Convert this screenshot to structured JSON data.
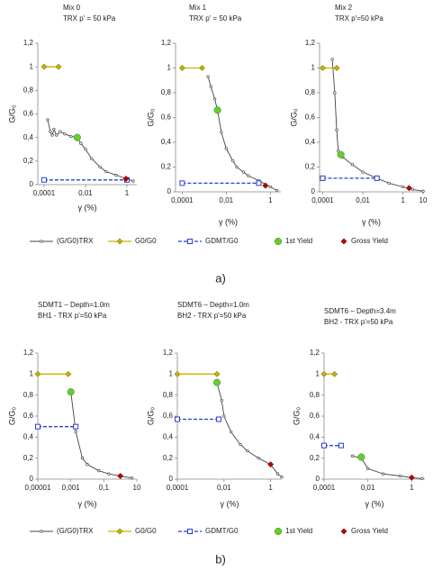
{
  "panel_labels": [
    "a)",
    "b)"
  ],
  "chart_data": [
    {
      "type": "line",
      "title": "Mix 0",
      "subtitle": "TRX p' = 50 kPa",
      "xlabel": "γ (%)",
      "ylabel": "G/G₀",
      "xscale": "log",
      "xlim": [
        5e-05,
        3
      ],
      "xticks": [
        {
          "value": 0.0001,
          "label": "0,0001"
        },
        {
          "value": 0.01,
          "label": "0,01"
        },
        1
      ],
      "ylim": [
        0,
        1.2
      ],
      "yticks": [
        0,
        {
          "value": 0.2,
          "label": "0,2"
        },
        {
          "value": 0.4,
          "label": "0,4"
        },
        {
          "value": 0.6,
          "label": "0,6"
        },
        {
          "value": 0.8,
          "label": "0,8"
        },
        1,
        {
          "value": 1.2,
          "label": "1,2"
        }
      ],
      "series": [
        {
          "name": "(G/G0)TRX",
          "color": "#444444",
          "marker": "dot",
          "x": [
            0.00015,
            0.0002,
            0.00025,
            0.0003,
            0.0004,
            0.0006,
            0.001,
            0.002,
            0.004,
            0.006,
            0.01,
            0.02,
            0.05,
            0.1,
            0.3,
            1,
            2
          ],
          "values": [
            0.55,
            0.45,
            0.42,
            0.47,
            0.42,
            0.45,
            0.43,
            0.41,
            0.4,
            0.35,
            0.3,
            0.22,
            0.15,
            0.11,
            0.08,
            0.05,
            0.03
          ]
        },
        {
          "name": "G0/G0",
          "color": "#c8b400",
          "marker": "diamond",
          "x": [
            0.0001,
            0.0005
          ],
          "values": [
            1,
            1
          ]
        },
        {
          "name": "GDMT/G0",
          "color": "#2a3fd0",
          "marker": "square",
          "dash": true,
          "x": [
            0.0001,
            1
          ],
          "values": [
            0.04,
            0.04
          ]
        },
        {
          "name": "1st Yield",
          "color": "#66cc33",
          "marker": "circle",
          "x": [
            0.004
          ],
          "values": [
            0.4
          ]
        },
        {
          "name": "Gross Yield",
          "color": "#c00000",
          "marker": "diamond",
          "x": [
            0.9
          ],
          "values": [
            0.05
          ]
        }
      ]
    },
    {
      "type": "line",
      "title": "Mix 1",
      "subtitle": "TRX p' = 50 kPa",
      "xlabel": "γ (%)",
      "ylabel": "G/G₀",
      "xscale": "log",
      "xlim": [
        5e-05,
        3
      ],
      "xticks": [
        {
          "value": 0.0001,
          "label": "0,0001"
        },
        {
          "value": 0.01,
          "label": "0,01"
        },
        1
      ],
      "ylim": [
        0,
        1.2
      ],
      "yticks": [
        0,
        {
          "value": 0.2,
          "label": "0,2"
        },
        {
          "value": 0.4,
          "label": "0,4"
        },
        {
          "value": 0.6,
          "label": "0,6"
        },
        {
          "value": 0.8,
          "label": "0,8"
        },
        1,
        {
          "value": 1.2,
          "label": "1,2"
        }
      ],
      "series": [
        {
          "name": "(G/G0)TRX",
          "color": "#444444",
          "marker": "dot",
          "x": [
            0.0015,
            0.002,
            0.003,
            0.004,
            0.006,
            0.01,
            0.02,
            0.03,
            0.06,
            0.1,
            0.3,
            0.6,
            1,
            2
          ],
          "values": [
            0.93,
            0.85,
            0.75,
            0.66,
            0.48,
            0.35,
            0.25,
            0.2,
            0.16,
            0.13,
            0.09,
            0.06,
            0.04,
            0.01
          ]
        },
        {
          "name": "G0/G0",
          "color": "#c8b400",
          "marker": "diamond",
          "x": [
            0.0001,
            0.0008
          ],
          "values": [
            1,
            1
          ]
        },
        {
          "name": "GDMT/G0",
          "color": "#2a3fd0",
          "marker": "square",
          "dash": true,
          "x": [
            0.0001,
            0.3
          ],
          "values": [
            0.07,
            0.07
          ]
        },
        {
          "name": "1st Yield",
          "color": "#66cc33",
          "marker": "circle",
          "x": [
            0.004
          ],
          "values": [
            0.66
          ]
        },
        {
          "name": "Gross Yield",
          "color": "#c00000",
          "marker": "diamond",
          "x": [
            0.6
          ],
          "values": [
            0.05
          ]
        }
      ]
    },
    {
      "type": "line",
      "title": "Mix 2",
      "subtitle": "TRX p'=50 kPa",
      "xlabel": "γ (%)",
      "ylabel": "G/G₀",
      "xscale": "log",
      "xlim": [
        7e-05,
        10
      ],
      "xticks": [
        {
          "value": 0.0001,
          "label": "0,0001"
        },
        {
          "value": 0.01,
          "label": "0,01"
        },
        1,
        10
      ],
      "ylim": [
        0,
        1.2
      ],
      "yticks": [
        0,
        {
          "value": 0.2,
          "label": "0,2"
        },
        {
          "value": 0.4,
          "label": "0,4"
        },
        {
          "value": 0.6,
          "label": "0,6"
        },
        {
          "value": 0.8,
          "label": "0,8"
        },
        1,
        {
          "value": 1.2,
          "label": "1,2"
        }
      ],
      "series": [
        {
          "name": "(G/G0)TRX",
          "color": "#444444",
          "marker": "dot",
          "x": [
            0.0003,
            0.0004,
            0.0005,
            0.0006,
            0.001,
            0.003,
            0.01,
            0.05,
            0.2,
            1,
            3,
            10
          ],
          "values": [
            1.07,
            0.8,
            0.5,
            0.33,
            0.28,
            0.22,
            0.16,
            0.11,
            0.07,
            0.04,
            0.02,
            0.005
          ]
        },
        {
          "name": "G0/G0",
          "color": "#c8b400",
          "marker": "diamond",
          "x": [
            0.0001,
            0.0005
          ],
          "values": [
            1,
            1
          ]
        },
        {
          "name": "GDMT/G0",
          "color": "#2a3fd0",
          "marker": "square",
          "dash": true,
          "x": [
            0.0001,
            0.05
          ],
          "values": [
            0.11,
            0.11
          ]
        },
        {
          "name": "1st Yield",
          "color": "#66cc33",
          "marker": "circle",
          "x": [
            0.0008
          ],
          "values": [
            0.3
          ]
        },
        {
          "name": "Gross Yield",
          "color": "#c00000",
          "marker": "diamond",
          "x": [
            2
          ],
          "values": [
            0.03
          ]
        }
      ]
    },
    {
      "type": "line",
      "title": "SDMT1 – Depth=1.0m",
      "subtitle": "BH1 - TRX p'=50 kPa",
      "xlabel": "γ (%)",
      "ylabel": "G/G₀",
      "xscale": "log",
      "xlim": [
        1e-05,
        10
      ],
      "xticks": [
        {
          "value": 1e-05,
          "label": "0,00001"
        },
        {
          "value": 0.001,
          "label": "0,001"
        },
        {
          "value": 0.1,
          "label": "0,1"
        },
        10
      ],
      "ylim": [
        0,
        1.2
      ],
      "yticks": [
        0,
        {
          "value": 0.2,
          "label": "0,2"
        },
        {
          "value": 0.4,
          "label": "0,4"
        },
        {
          "value": 0.6,
          "label": "0,6"
        },
        {
          "value": 0.8,
          "label": "0,8"
        },
        1,
        {
          "value": 1.2,
          "label": "1,2"
        }
      ],
      "series": [
        {
          "name": "(G/G0)TRX",
          "color": "#444444",
          "marker": "dot",
          "x": [
            0.001,
            0.002,
            0.005,
            0.01,
            0.05,
            0.2,
            1,
            5
          ],
          "values": [
            0.83,
            0.45,
            0.2,
            0.14,
            0.08,
            0.05,
            0.03,
            0.01
          ]
        },
        {
          "name": "G0/G0",
          "color": "#c8b400",
          "marker": "diamond",
          "x": [
            1e-05,
            0.0007
          ],
          "values": [
            1,
            1
          ]
        },
        {
          "name": "GDMT/G0",
          "color": "#2a3fd0",
          "marker": "square",
          "dash": true,
          "x": [
            1e-05,
            0.002
          ],
          "values": [
            0.5,
            0.5
          ]
        },
        {
          "name": "1st Yield",
          "color": "#66cc33",
          "marker": "circle",
          "x": [
            0.001
          ],
          "values": [
            0.83
          ]
        },
        {
          "name": "Gross Yield",
          "color": "#c00000",
          "marker": "diamond",
          "x": [
            1
          ],
          "values": [
            0.03
          ]
        }
      ]
    },
    {
      "type": "line",
      "title": "SDMT6 – Depth=1.0m",
      "subtitle": "BH2 - TRX p'=50 kPa",
      "xlabel": "γ (%)",
      "ylabel": "G/G₀",
      "xscale": "log",
      "xlim": [
        0.0001,
        3
      ],
      "xticks": [
        {
          "value": 0.0001,
          "label": "0,0001"
        },
        {
          "value": 0.01,
          "label": "0,01"
        },
        1
      ],
      "ylim": [
        0,
        1.2
      ],
      "yticks": [
        0,
        {
          "value": 0.2,
          "label": "0,2"
        },
        {
          "value": 0.4,
          "label": "0,4"
        },
        {
          "value": 0.6,
          "label": "0,6"
        },
        {
          "value": 0.8,
          "label": "0,8"
        },
        1,
        {
          "value": 1.2,
          "label": "1,2"
        }
      ],
      "series": [
        {
          "name": "(G/G0)TRX",
          "color": "#444444",
          "marker": "dot",
          "x": [
            0.005,
            0.008,
            0.01,
            0.02,
            0.05,
            0.1,
            0.3,
            1,
            2,
            3
          ],
          "values": [
            0.92,
            0.75,
            0.6,
            0.45,
            0.33,
            0.27,
            0.2,
            0.14,
            0.05,
            0.02
          ]
        },
        {
          "name": "G0/G0",
          "color": "#c8b400",
          "marker": "diamond",
          "x": [
            0.0001,
            0.005
          ],
          "values": [
            1,
            1
          ]
        },
        {
          "name": "GDMT/G0",
          "color": "#2a3fd0",
          "marker": "square",
          "dash": true,
          "x": [
            0.0001,
            0.006
          ],
          "values": [
            0.57,
            0.57
          ]
        },
        {
          "name": "1st Yield",
          "color": "#66cc33",
          "marker": "circle",
          "x": [
            0.005
          ],
          "values": [
            0.92
          ]
        },
        {
          "name": "Gross Yield",
          "color": "#c00000",
          "marker": "diamond",
          "x": [
            1
          ],
          "values": [
            0.14
          ]
        }
      ]
    },
    {
      "type": "line",
      "title": "SDMT6 – Depth=3.4m",
      "subtitle": "BH2 - TRX p'=50 kPa",
      "xlabel": "γ (%)",
      "ylabel": "G/G₀",
      "xscale": "log",
      "xlim": [
        0.0001,
        4
      ],
      "xticks": [
        {
          "value": 0.0001,
          "label": "0,0001"
        },
        {
          "value": 0.01,
          "label": "0,01"
        },
        1
      ],
      "ylim": [
        0,
        1.2
      ],
      "yticks": [
        0,
        {
          "value": 0.2,
          "label": "0,2"
        },
        {
          "value": 0.4,
          "label": "0,4"
        },
        {
          "value": 0.6,
          "label": "0,6"
        },
        {
          "value": 0.8,
          "label": "0,8"
        },
        1,
        {
          "value": 1.2,
          "label": "1,2"
        }
      ],
      "series": [
        {
          "name": "(G/G0)TRX",
          "color": "#444444",
          "marker": "dot",
          "x": [
            0.002,
            0.005,
            0.01,
            0.05,
            0.3,
            1,
            3
          ],
          "values": [
            0.22,
            0.2,
            0.1,
            0.05,
            0.03,
            0.015,
            0.005
          ]
        },
        {
          "name": "G0/G0",
          "color": "#c8b400",
          "marker": "diamond",
          "x": [
            0.0001,
            0.0003
          ],
          "values": [
            1,
            1
          ]
        },
        {
          "name": "GDMT/G0",
          "color": "#2a3fd0",
          "marker": "square",
          "dash": true,
          "x": [
            0.0001,
            0.0006
          ],
          "values": [
            0.32,
            0.32
          ]
        },
        {
          "name": "1st Yield",
          "color": "#66cc33",
          "marker": "circle",
          "x": [
            0.005
          ],
          "values": [
            0.21
          ]
        },
        {
          "name": "Gross Yield",
          "color": "#c00000",
          "marker": "diamond",
          "x": [
            1
          ],
          "values": [
            0.015
          ]
        }
      ]
    }
  ]
}
